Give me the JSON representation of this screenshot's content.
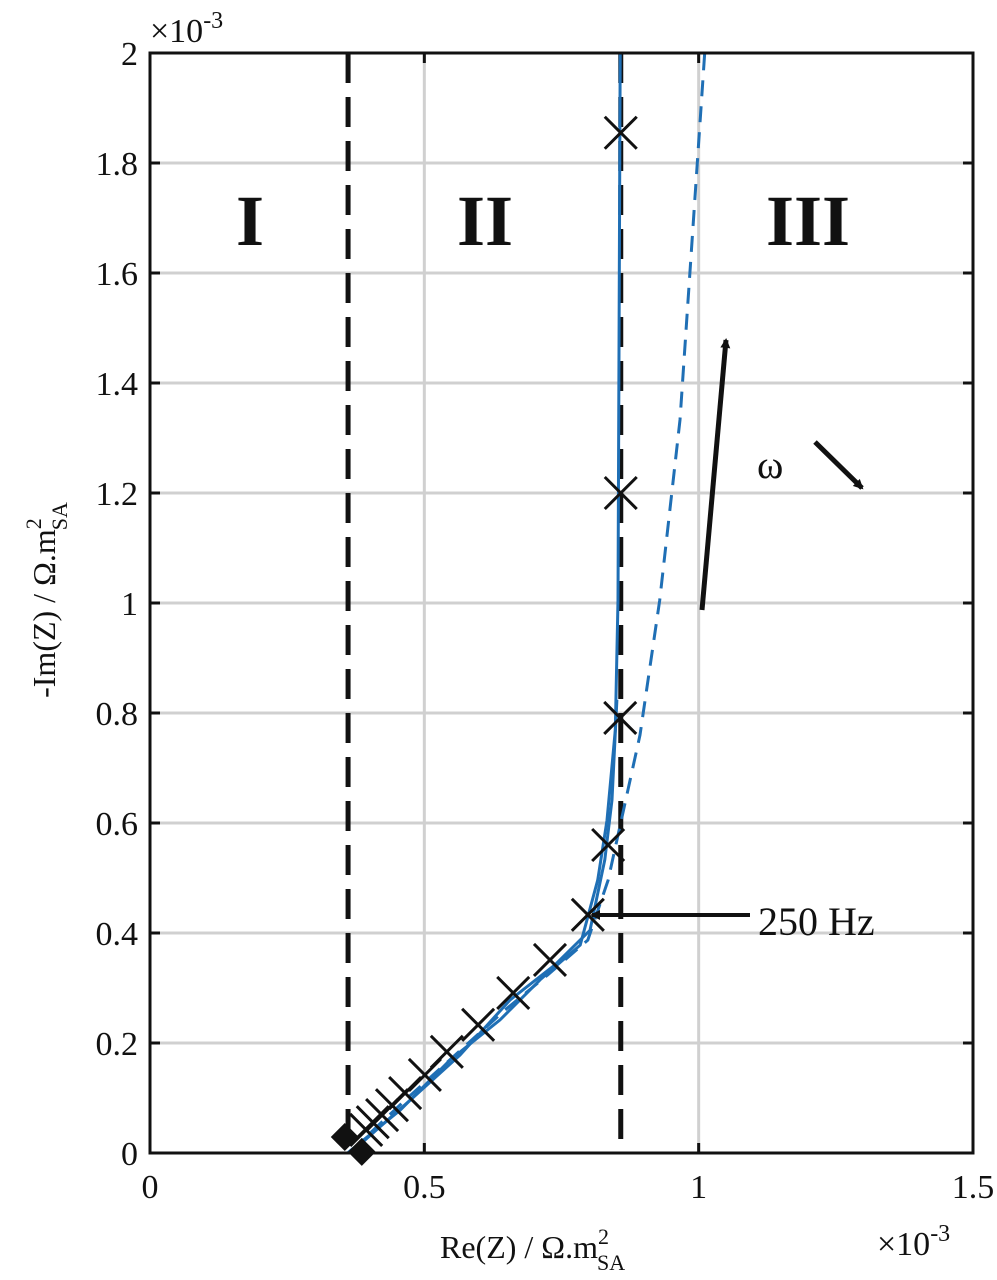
{
  "chart_data": {
    "type": "line",
    "xlabel": {
      "text": "Re(Z) / Ω.m",
      "sup": "2",
      "sub": "SA"
    },
    "ylabel": {
      "text": "-Im(Z) / Ω.m",
      "sup": "2",
      "sub": "SA"
    },
    "x_exponent": {
      "base": "×10",
      "power": "-3"
    },
    "y_exponent": {
      "base": "×10",
      "power": "-3"
    },
    "xlim": [
      0,
      1.5
    ],
    "xticks": [
      0,
      0.5,
      1,
      1.5
    ],
    "ylim": [
      0,
      2
    ],
    "yticks": [
      0,
      0.2,
      0.4,
      0.6,
      0.8,
      1,
      1.2,
      1.4,
      1.6,
      1.8,
      2
    ],
    "grid": true,
    "boundaries": [
      0.361,
      0.858
    ],
    "regions": [
      "I",
      "II",
      "III"
    ],
    "annotations": [
      "250 Hz",
      "ω"
    ],
    "series": [
      {
        "style": "solid",
        "color": "#1f6fb5",
        "x": [
          0.36,
          0.456,
          0.547,
          0.638,
          0.711,
          0.784,
          0.816,
          0.833,
          0.848,
          0.853,
          0.857
        ],
        "values": [
          0,
          0.078,
          0.169,
          0.242,
          0.315,
          0.378,
          0.496,
          0.605,
          0.769,
          1.005,
          2.0
        ]
      },
      {
        "style": "solid",
        "color": "#1f6fb5",
        "x": [
          0.365,
          0.474,
          0.565,
          0.656,
          0.738,
          0.802,
          0.829,
          0.842,
          0.851
        ],
        "values": [
          0,
          0.096,
          0.178,
          0.278,
          0.342,
          0.405,
          0.533,
          0.642,
          0.824
        ]
      },
      {
        "style": "dashed",
        "color": "#1f6fb5",
        "x": [
          0.368,
          0.465,
          0.556,
          0.647,
          0.725,
          0.798,
          0.835,
          0.857,
          0.893,
          0.929,
          0.966,
          1.011
        ],
        "values": [
          0.005,
          0.096,
          0.178,
          0.26,
          0.324,
          0.387,
          0.496,
          0.596,
          0.76,
          1.005,
          1.333,
          2.0
        ]
      }
    ],
    "markers": {
      "symbol": "x",
      "color": "#111",
      "x": [
        0.858,
        0.858,
        0.857,
        0.835,
        0.798,
        0.729,
        0.662,
        0.598,
        0.541,
        0.501,
        0.465,
        0.441,
        0.423,
        0.406,
        0.394
      ],
      "values": [
        1.855,
        1.2,
        0.791,
        0.56,
        0.433,
        0.351,
        0.291,
        0.233,
        0.184,
        0.142,
        0.109,
        0.087,
        0.069,
        0.056,
        0.042
      ]
    },
    "diamonds": {
      "color": "#111",
      "x": [
        0.355,
        0.386
      ],
      "values": [
        0.029,
        0.002
      ]
    }
  }
}
